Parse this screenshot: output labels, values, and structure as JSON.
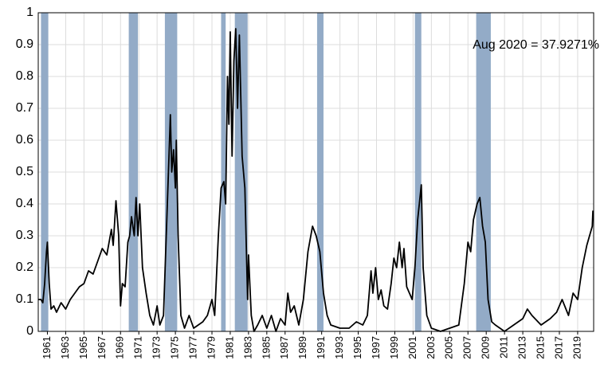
{
  "chart_data": {
    "type": "line",
    "annotation": "Aug 2020 = 37.9271%",
    "color": "#000000",
    "recession_color": "#93abc7",
    "grid": true,
    "xlim": [
      1960,
      2020.75
    ],
    "ylim": [
      0,
      1
    ],
    "yticks": [
      0,
      0.1,
      0.2,
      0.3,
      0.4,
      0.5,
      0.6,
      0.7,
      0.8,
      0.9,
      1
    ],
    "xticks": [
      1961,
      1963,
      1965,
      1967,
      1969,
      1971,
      1973,
      1975,
      1977,
      1979,
      1981,
      1983,
      1985,
      1987,
      1989,
      1991,
      1993,
      1995,
      1997,
      1999,
      2001,
      2003,
      2005,
      2007,
      2009,
      2011,
      2013,
      2015,
      2017,
      2019
    ],
    "recessions": [
      [
        1960.3,
        1961.1
      ],
      [
        1969.9,
        1970.9
      ],
      [
        1973.85,
        1975.2
      ],
      [
        1980.0,
        1980.5
      ],
      [
        1981.5,
        1982.9
      ],
      [
        1990.5,
        1991.2
      ],
      [
        2001.2,
        2001.9
      ],
      [
        2007.9,
        2009.5
      ]
    ],
    "x": [
      1960.0,
      1960.3,
      1960.5,
      1960.7,
      1960.9,
      1961.0,
      1961.2,
      1961.4,
      1961.7,
      1962.0,
      1962.5,
      1963.0,
      1963.5,
      1964.0,
      1964.5,
      1965.0,
      1965.5,
      1966.0,
      1966.5,
      1967.0,
      1967.5,
      1968.0,
      1968.2,
      1968.5,
      1968.8,
      1969.0,
      1969.2,
      1969.5,
      1969.8,
      1970.0,
      1970.2,
      1970.5,
      1970.7,
      1970.9,
      1971.1,
      1971.4,
      1971.8,
      1972.2,
      1972.6,
      1973.0,
      1973.3,
      1973.7,
      1974.0,
      1974.3,
      1974.45,
      1974.6,
      1974.8,
      1975.0,
      1975.1,
      1975.3,
      1975.6,
      1976.0,
      1976.5,
      1977.0,
      1977.5,
      1978.0,
      1978.5,
      1979.0,
      1979.3,
      1979.7,
      1980.0,
      1980.3,
      1980.5,
      1980.7,
      1980.85,
      1981.0,
      1981.2,
      1981.4,
      1981.6,
      1981.8,
      1982.0,
      1982.3,
      1982.6,
      1982.9,
      1983.0,
      1983.3,
      1983.6,
      1984.0,
      1984.5,
      1985.0,
      1985.5,
      1986.0,
      1986.5,
      1987.0,
      1987.3,
      1987.6,
      1988.0,
      1988.5,
      1989.0,
      1989.5,
      1990.0,
      1990.4,
      1990.8,
      1991.2,
      1991.6,
      1992.0,
      1993.0,
      1994.0,
      1994.8,
      1995.5,
      1996.0,
      1996.4,
      1996.6,
      1996.9,
      1997.2,
      1997.5,
      1997.8,
      1998.2,
      1998.6,
      1998.9,
      1999.2,
      1999.5,
      1999.8,
      2000.0,
      2000.3,
      2000.6,
      2000.9,
      2001.2,
      2001.5,
      2001.9,
      2002.1,
      2002.5,
      2003.0,
      2004.0,
      2005.0,
      2006.0,
      2006.6,
      2007.0,
      2007.3,
      2007.6,
      2008.0,
      2008.3,
      2008.6,
      2008.9,
      2009.2,
      2009.6,
      2010.0,
      2011.0,
      2012.0,
      2013.0,
      2013.5,
      2014.0,
      2015.0,
      2016.0,
      2016.7,
      2017.3,
      2018.0,
      2018.5,
      2019.0,
      2019.5,
      2020.0,
      2020.3,
      2020.6,
      2020.67
    ],
    "values": [
      0.1,
      0.1,
      0.09,
      0.15,
      0.25,
      0.28,
      0.15,
      0.07,
      0.08,
      0.06,
      0.09,
      0.07,
      0.1,
      0.12,
      0.14,
      0.15,
      0.19,
      0.18,
      0.22,
      0.26,
      0.24,
      0.32,
      0.27,
      0.41,
      0.3,
      0.08,
      0.15,
      0.14,
      0.28,
      0.3,
      0.36,
      0.3,
      0.42,
      0.3,
      0.4,
      0.2,
      0.12,
      0.05,
      0.02,
      0.08,
      0.02,
      0.05,
      0.3,
      0.55,
      0.68,
      0.5,
      0.57,
      0.45,
      0.6,
      0.3,
      0.05,
      0.01,
      0.05,
      0.01,
      0.02,
      0.03,
      0.05,
      0.1,
      0.05,
      0.3,
      0.45,
      0.47,
      0.4,
      0.8,
      0.65,
      0.94,
      0.55,
      0.85,
      0.95,
      0.7,
      0.93,
      0.55,
      0.45,
      0.1,
      0.24,
      0.05,
      0.0,
      0.02,
      0.05,
      0.01,
      0.05,
      0.0,
      0.04,
      0.02,
      0.12,
      0.06,
      0.08,
      0.02,
      0.1,
      0.25,
      0.33,
      0.3,
      0.25,
      0.12,
      0.05,
      0.02,
      0.01,
      0.01,
      0.03,
      0.02,
      0.05,
      0.19,
      0.12,
      0.2,
      0.1,
      0.13,
      0.08,
      0.07,
      0.15,
      0.23,
      0.2,
      0.28,
      0.2,
      0.26,
      0.14,
      0.12,
      0.1,
      0.2,
      0.35,
      0.46,
      0.2,
      0.05,
      0.01,
      0.0,
      0.01,
      0.02,
      0.15,
      0.28,
      0.25,
      0.35,
      0.4,
      0.42,
      0.33,
      0.28,
      0.1,
      0.03,
      0.02,
      0.0,
      0.02,
      0.04,
      0.07,
      0.05,
      0.02,
      0.04,
      0.06,
      0.1,
      0.05,
      0.12,
      0.1,
      0.2,
      0.27,
      0.3,
      0.33,
      0.379
    ]
  }
}
